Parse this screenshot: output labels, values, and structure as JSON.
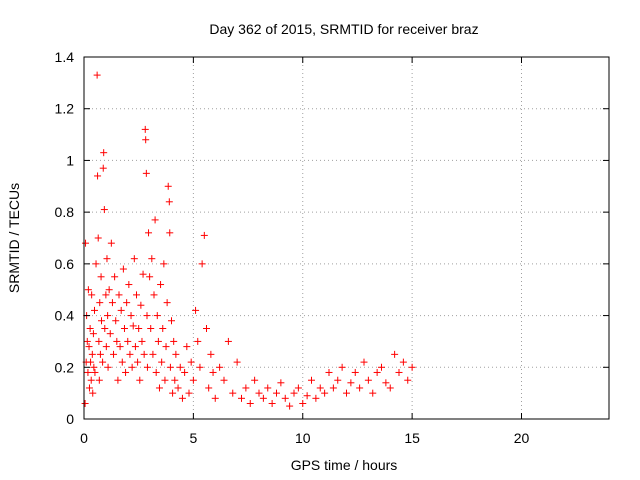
{
  "chart_data": {
    "type": "scatter",
    "title": "Day 362 of 2015, SRMTID for receiver braz",
    "xlabel": "GPS time / hours",
    "ylabel": "SRMTID / TECUs",
    "xlim": [
      0,
      24
    ],
    "ylim": [
      0,
      1.4
    ],
    "xticks": [
      0,
      5,
      10,
      15,
      20
    ],
    "xtick_labels": [
      "0",
      "5",
      "10",
      "15",
      "20"
    ],
    "yticks": [
      0,
      0.2,
      0.4,
      0.6,
      0.8,
      1,
      1.2,
      1.4
    ],
    "ytick_labels": [
      "0",
      "0.2",
      "0.4",
      "0.6",
      "0.8",
      "1",
      "1.2",
      "1.4"
    ],
    "grid": true,
    "legend": "none",
    "marker": "plus",
    "color": "#ff0000",
    "series": [
      {
        "x": [
          0.05,
          0.07,
          0.1,
          0.12,
          0.15,
          0.18,
          0.2,
          0.23,
          0.25,
          0.28,
          0.3,
          0.33,
          0.35,
          0.38,
          0.4,
          0.43,
          0.45,
          0.48,
          0.5,
          0.55,
          0.6,
          0.62,
          0.65,
          0.68,
          0.7,
          0.72,
          0.75,
          0.78,
          0.8,
          0.85,
          0.88,
          0.9,
          0.93,
          0.95,
          1.0,
          1.02,
          1.05,
          1.08,
          1.1,
          1.15,
          1.2,
          1.25,
          1.3,
          1.35,
          1.4,
          1.45,
          1.5,
          1.55,
          1.6,
          1.65,
          1.7,
          1.75,
          1.8,
          1.85,
          1.9,
          1.95,
          2.0,
          2.05,
          2.1,
          2.15,
          2.2,
          2.25,
          2.3,
          2.35,
          2.4,
          2.45,
          2.5,
          2.55,
          2.6,
          2.65,
          2.7,
          2.75,
          2.8,
          2.82,
          2.85,
          2.88,
          2.9,
          2.95,
          3.0,
          3.05,
          3.1,
          3.15,
          3.2,
          3.25,
          3.3,
          3.35,
          3.4,
          3.45,
          3.5,
          3.55,
          3.6,
          3.65,
          3.7,
          3.75,
          3.8,
          3.85,
          3.9,
          3.92,
          3.95,
          4.0,
          4.05,
          4.1,
          4.15,
          4.2,
          4.3,
          4.4,
          4.5,
          4.6,
          4.7,
          4.8,
          4.9,
          5.0,
          5.1,
          5.2,
          5.3,
          5.4,
          5.5,
          5.6,
          5.7,
          5.8,
          5.9,
          6.0,
          6.2,
          6.4,
          6.6,
          6.8,
          7.0,
          7.2,
          7.4,
          7.6,
          7.8,
          8.0,
          8.2,
          8.4,
          8.6,
          8.8,
          9.0,
          9.2,
          9.4,
          9.6,
          9.8,
          10.0,
          10.2,
          10.4,
          10.6,
          10.8,
          11.0,
          11.2,
          11.4,
          11.6,
          11.8,
          12.0,
          12.2,
          12.4,
          12.6,
          12.8,
          13.0,
          13.2,
          13.4,
          13.6,
          13.8,
          14.0,
          14.2,
          14.4,
          14.6,
          14.8,
          15.0
        ],
        "y": [
          0.06,
          0.68,
          0.22,
          0.4,
          0.3,
          0.18,
          0.5,
          0.28,
          0.12,
          0.35,
          0.22,
          0.15,
          0.48,
          0.25,
          0.1,
          0.33,
          0.2,
          0.42,
          0.18,
          0.6,
          1.33,
          0.94,
          0.7,
          0.3,
          0.15,
          0.45,
          0.25,
          0.55,
          0.38,
          0.22,
          0.97,
          1.03,
          0.81,
          0.35,
          0.48,
          0.28,
          0.62,
          0.4,
          0.2,
          0.5,
          0.33,
          0.68,
          0.45,
          0.25,
          0.55,
          0.38,
          0.3,
          0.15,
          0.48,
          0.28,
          0.42,
          0.22,
          0.58,
          0.35,
          0.18,
          0.45,
          0.3,
          0.52,
          0.25,
          0.4,
          0.2,
          0.36,
          0.62,
          0.28,
          0.48,
          0.22,
          0.35,
          0.15,
          0.44,
          0.3,
          0.56,
          0.25,
          1.12,
          1.08,
          0.95,
          0.4,
          0.2,
          0.72,
          0.55,
          0.35,
          0.62,
          0.25,
          0.48,
          0.77,
          0.18,
          0.4,
          0.3,
          0.12,
          0.52,
          0.22,
          0.35,
          0.6,
          0.15,
          0.28,
          0.45,
          0.9,
          0.84,
          0.72,
          0.2,
          0.38,
          0.1,
          0.3,
          0.15,
          0.25,
          0.12,
          0.2,
          0.08,
          0.18,
          0.28,
          0.1,
          0.22,
          0.15,
          0.42,
          0.3,
          0.2,
          0.6,
          0.71,
          0.35,
          0.12,
          0.25,
          0.18,
          0.08,
          0.2,
          0.15,
          0.3,
          0.1,
          0.22,
          0.08,
          0.12,
          0.06,
          0.15,
          0.1,
          0.08,
          0.12,
          0.06,
          0.1,
          0.14,
          0.08,
          0.05,
          0.1,
          0.12,
          0.06,
          0.09,
          0.15,
          0.08,
          0.12,
          0.1,
          0.18,
          0.12,
          0.15,
          0.2,
          0.1,
          0.14,
          0.18,
          0.12,
          0.22,
          0.15,
          0.1,
          0.18,
          0.2,
          0.14,
          0.12,
          0.25,
          0.18,
          0.22,
          0.15,
          0.2
        ]
      }
    ]
  }
}
